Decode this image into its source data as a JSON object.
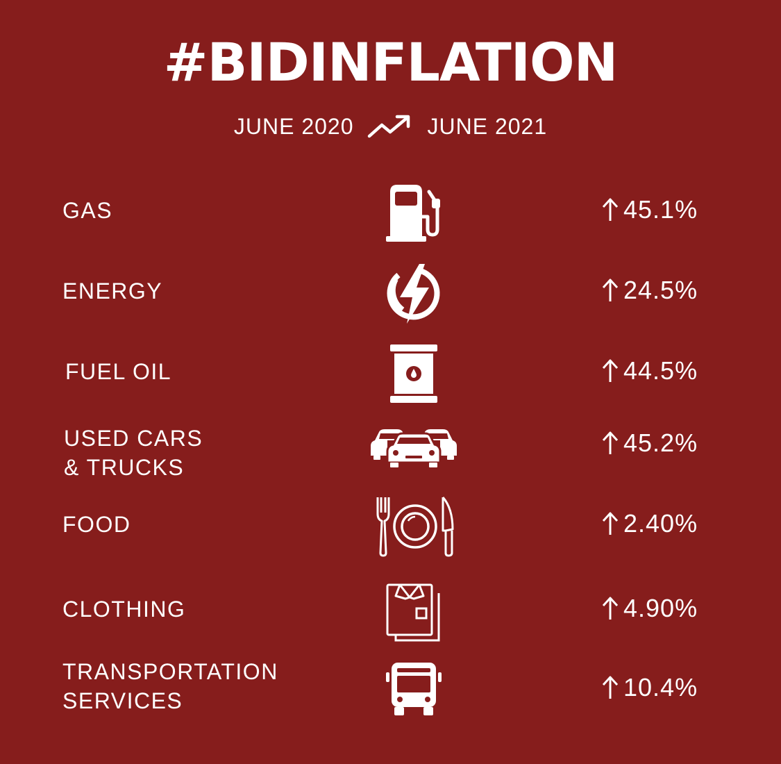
{
  "title": "#BIDINFLATION",
  "period": {
    "from": "JUNE 2020",
    "to": "JUNE 2021",
    "trend_icon": "trending-up-icon"
  },
  "colors": {
    "background": "#861d1c",
    "foreground": "#ffffff"
  },
  "items": [
    {
      "label_line1": "GAS",
      "label_line2": "",
      "icon": "fuel-pump-icon",
      "change": "45.1%"
    },
    {
      "label_line1": "ENERGY",
      "label_line2": "",
      "icon": "lightning-bolt-icon",
      "change": "24.5%"
    },
    {
      "label_line1": "FUEL OIL",
      "label_line2": "",
      "icon": "oil-barrel-icon",
      "change": "44.5%"
    },
    {
      "label_line1": "USED CARS",
      "label_line2": "& TRUCKS",
      "icon": "cars-icon",
      "change": "45.2%"
    },
    {
      "label_line1": "FOOD",
      "label_line2": "",
      "icon": "plate-utensils-icon",
      "change": "2.40%"
    },
    {
      "label_line1": "CLOTHING",
      "label_line2": "",
      "icon": "folded-shirt-icon",
      "change": "4.90%"
    },
    {
      "label_line1": "TRANSPORTATION",
      "label_line2": "SERVICES",
      "icon": "bus-icon",
      "change": "10.4%"
    }
  ],
  "change_icon": "arrow-up-icon"
}
